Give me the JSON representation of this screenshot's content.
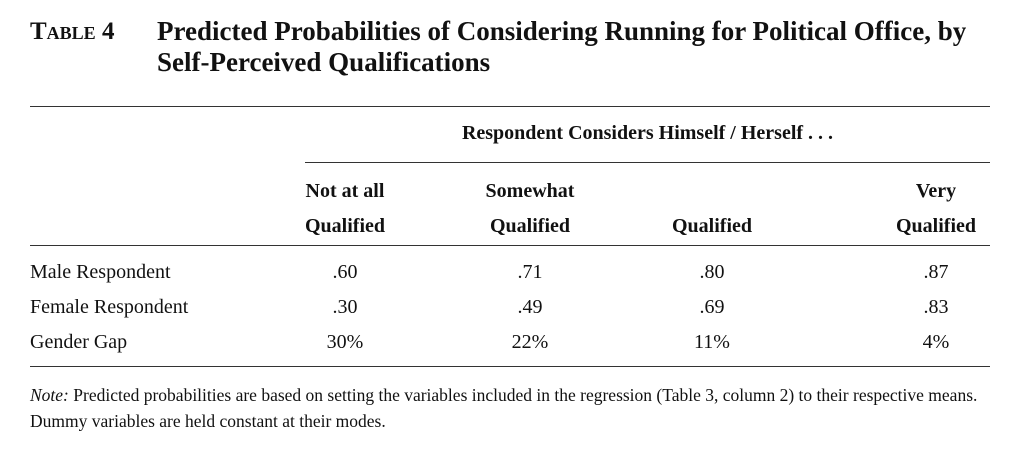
{
  "table_label": "Table 4",
  "title": "Predicted Probabilities of Considering Running for Political Office, by Self-Perceived Qualifications",
  "spanner": "Respondent Considers Himself / Herself . . .",
  "columns": [
    [
      "Not at all",
      "Qualified"
    ],
    [
      "Somewhat",
      "Qualified"
    ],
    [
      "Qualified"
    ],
    [
      "Very",
      "Qualified"
    ]
  ],
  "rows": [
    [
      "Male Respondent",
      ".60",
      ".71",
      ".80",
      ".87"
    ],
    [
      "Female Respondent",
      ".30",
      ".49",
      ".69",
      ".83"
    ],
    [
      "Gender Gap",
      "30%",
      "22%",
      "11%",
      "4%"
    ]
  ],
  "note": {
    "label": "Note:",
    "text": "Predicted probabilities are based on setting the variables included in the regression (Table 3, column 2) to their respective means. Dummy variables are held constant at their modes."
  }
}
